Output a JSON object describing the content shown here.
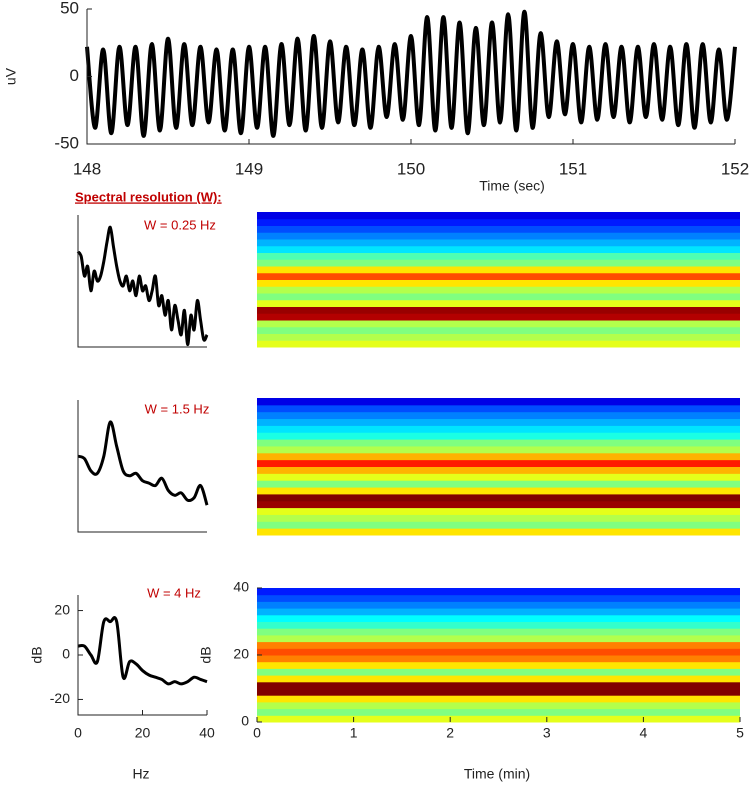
{
  "chart_data": [
    {
      "type": "line",
      "y_label": "uV",
      "x_label": "Time (sec)",
      "xlim": [
        148,
        152
      ],
      "xticks": [
        148,
        149,
        150,
        151,
        152
      ],
      "ylim": [
        -50,
        50
      ],
      "yticks": [
        -50,
        0,
        50
      ],
      "x": [
        148,
        148.05,
        148.1,
        148.15,
        148.2,
        148.25,
        148.3,
        148.35,
        148.4,
        148.45,
        148.5,
        148.55,
        148.6,
        148.65,
        148.7,
        148.75,
        148.8,
        148.85,
        148.9,
        148.95,
        149,
        149.05,
        149.1,
        149.15,
        149.2,
        149.25,
        149.3,
        149.35,
        149.4,
        149.45,
        149.5,
        149.55,
        149.6,
        149.65,
        149.7,
        149.75,
        149.8,
        149.85,
        149.9,
        149.95,
        150,
        150.05,
        150.1,
        150.15,
        150.2,
        150.25,
        150.3,
        150.35,
        150.4,
        150.45,
        150.5,
        150.55,
        150.6,
        150.65,
        150.7,
        150.75,
        150.8,
        150.85,
        150.9,
        150.95,
        151,
        151.05,
        151.1,
        151.15,
        151.2,
        151.25,
        151.3,
        151.35,
        151.4,
        151.45,
        151.5,
        151.55,
        151.6,
        151.65,
        151.7,
        151.75,
        151.8,
        151.85,
        151.9,
        151.95,
        152
      ],
      "series": [
        {
          "color": "#000000",
          "values": [
            22,
            -38,
            20,
            -42,
            22,
            -36,
            22,
            -44,
            24,
            -40,
            28,
            -38,
            24,
            -36,
            22,
            -34,
            20,
            -40,
            20,
            -42,
            22,
            -38,
            22,
            -44,
            24,
            -36,
            28,
            -40,
            30,
            -38,
            26,
            -34,
            22,
            -36,
            20,
            -38,
            22,
            -30,
            24,
            -32,
            30,
            -36,
            44,
            -40,
            44,
            -38,
            40,
            -42,
            36,
            -36,
            40,
            -34,
            46,
            -40,
            48,
            -38,
            32,
            -30,
            26,
            -28,
            24,
            -34,
            22,
            -32,
            24,
            -30,
            22,
            -34,
            22,
            -30,
            24,
            -32,
            22,
            -36,
            24,
            -38,
            24,
            -34,
            20,
            -32,
            22
          ]
        }
      ]
    },
    {
      "type": "spectrum",
      "heading": "Spectral resolution (W):",
      "annotation": "W = 0.25 Hz",
      "xlim": [
        0,
        40
      ],
      "ylim": [
        -27,
        27
      ],
      "x": [
        0,
        1,
        2,
        3,
        4,
        5,
        6,
        7,
        8,
        9,
        10,
        11,
        12,
        13,
        14,
        15,
        16,
        17,
        18,
        19,
        20,
        21,
        22,
        23,
        24,
        25,
        26,
        27,
        28,
        29,
        30,
        31,
        32,
        33,
        34,
        35,
        36,
        37,
        38,
        39,
        40
      ],
      "series": [
        {
          "color": "#000000",
          "values": [
            12,
            10,
            2,
            6,
            -4,
            4,
            0,
            2,
            8,
            16,
            22,
            14,
            6,
            0,
            -2,
            2,
            -4,
            0,
            -6,
            2,
            -4,
            -2,
            -8,
            -4,
            2,
            -10,
            -6,
            -14,
            -8,
            -20,
            -10,
            -16,
            -22,
            -12,
            -26,
            -14,
            -20,
            -8,
            -16,
            -24,
            -22
          ]
        }
      ]
    },
    {
      "type": "spectrum",
      "annotation": "W = 1.5 Hz",
      "xlim": [
        0,
        40
      ],
      "ylim": [
        -27,
        27
      ],
      "x": [
        0,
        2,
        4,
        6,
        8,
        10,
        12,
        14,
        16,
        18,
        20,
        22,
        24,
        26,
        28,
        30,
        32,
        34,
        36,
        38,
        40
      ],
      "series": [
        {
          "color": "#000000",
          "values": [
            4,
            3,
            -2,
            -3,
            4,
            18,
            8,
            -2,
            -4,
            -3,
            -6,
            -7,
            -8,
            -5,
            -10,
            -12,
            -11,
            -14,
            -13,
            -8,
            -16
          ]
        }
      ]
    },
    {
      "type": "spectrum",
      "annotation": "W = 4 Hz",
      "x_label": "Hz",
      "y_label": "dB",
      "xlim": [
        0,
        40
      ],
      "xticks": [
        0,
        20,
        40
      ],
      "ylim": [
        -27,
        27
      ],
      "yticks": [
        -20,
        0,
        20
      ],
      "x": [
        0,
        2,
        4,
        6,
        8,
        10,
        12,
        14,
        16,
        18,
        20,
        22,
        24,
        26,
        28,
        30,
        32,
        34,
        36,
        38,
        40
      ],
      "series": [
        {
          "color": "#000000",
          "values": [
            4,
            4,
            0,
            -3,
            15,
            15,
            15,
            -10,
            -3,
            -4,
            -7,
            -9,
            -10,
            -11,
            -13,
            -12,
            -13,
            -12,
            -10,
            -11,
            -12
          ]
        }
      ]
    },
    {
      "type": "heatmap",
      "colormap": "jet",
      "clim": [
        -20,
        20
      ],
      "xlim": [
        0,
        5
      ],
      "ylim": [
        0,
        40
      ],
      "y_bins": [
        0,
        2,
        4,
        6,
        8,
        10,
        12,
        14,
        16,
        18,
        20,
        22,
        24,
        26,
        28,
        30,
        32,
        34,
        36,
        38,
        40
      ],
      "values": [
        4,
        2,
        0,
        2,
        18,
        19,
        4,
        0,
        2,
        6,
        12,
        6,
        0,
        -2,
        -6,
        -8,
        -10,
        -12,
        -14,
        -16
      ]
    },
    {
      "type": "heatmap",
      "colormap": "jet",
      "clim": [
        -20,
        20
      ],
      "xlim": [
        0,
        5
      ],
      "ylim": [
        0,
        40
      ],
      "y_bins": [
        0,
        2,
        4,
        6,
        8,
        10,
        12,
        14,
        16,
        18,
        20,
        22,
        24,
        26,
        28,
        30,
        32,
        34,
        36,
        38,
        40
      ],
      "values": [
        6,
        0,
        2,
        4,
        19,
        20,
        6,
        0,
        4,
        8,
        14,
        8,
        2,
        0,
        -4,
        -6,
        -8,
        -10,
        -12,
        -16
      ]
    },
    {
      "type": "heatmap",
      "colormap": "jet",
      "clim": [
        -20,
        20
      ],
      "x_label": "Time (min)",
      "y_label": "dB",
      "xlim": [
        0,
        5
      ],
      "xticks": [
        0,
        1,
        2,
        3,
        4,
        5
      ],
      "ylim": [
        0,
        40
      ],
      "yticks": [
        0,
        20,
        40
      ],
      "y_bins": [
        0,
        2,
        4,
        6,
        8,
        10,
        12,
        14,
        16,
        18,
        20,
        22,
        24,
        26,
        28,
        30,
        32,
        34,
        36,
        38,
        40
      ],
      "values": [
        4,
        0,
        2,
        6,
        20,
        20,
        6,
        0,
        6,
        10,
        12,
        10,
        2,
        0,
        -3,
        -5,
        -8,
        -10,
        -12,
        -14
      ]
    }
  ]
}
